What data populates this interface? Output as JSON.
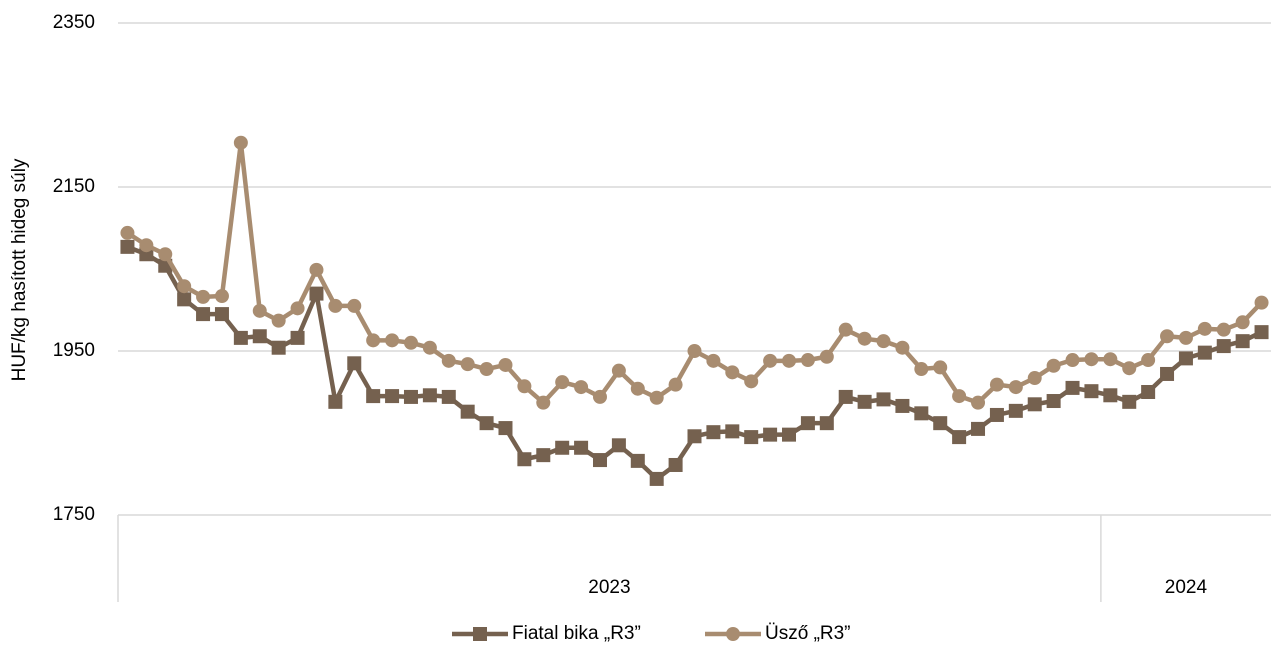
{
  "chart_data": {
    "type": "line",
    "y_label": "HUF/kg hasított hideg súly",
    "ylim": [
      1750,
      2350
    ],
    "yticks": [
      1750,
      1950,
      2150,
      2350
    ],
    "grid": true,
    "categories": [
      null,
      null,
      null,
      null,
      null,
      null,
      null,
      null,
      null,
      null,
      null,
      null,
      null,
      null,
      null,
      null,
      null,
      null,
      null,
      null,
      null,
      null,
      null,
      null,
      null,
      null,
      null,
      null,
      null,
      null,
      null,
      null,
      null,
      null,
      null,
      null,
      null,
      null,
      null,
      null,
      null,
      null,
      null,
      null,
      null,
      null,
      null,
      null,
      null,
      null,
      null,
      null,
      null,
      null,
      null,
      null,
      null,
      null,
      null,
      null,
      null
    ],
    "groups": [
      {
        "label": "2023",
        "size": 52
      },
      {
        "label": "2024",
        "size": 9
      }
    ],
    "legend": "bottom",
    "series": [
      {
        "name": "Fiatal bika „R3”",
        "color": "#75614f",
        "marker": "square",
        "values": [
          2077,
          2068,
          2054,
          2013,
          1995,
          1995,
          1966,
          1968,
          1954,
          1966,
          2020,
          1888,
          1935,
          1895,
          1895,
          1894,
          1896,
          1894,
          1876,
          1862,
          1856,
          1818,
          1823,
          1832,
          1832,
          1817,
          1835,
          1816,
          1794,
          1811,
          1846,
          1851,
          1852,
          1845,
          1848,
          1848,
          1862,
          1862,
          1894,
          1888,
          1891,
          1883,
          1874,
          1862,
          1845,
          1855,
          1872,
          1877,
          1885,
          1889,
          1905,
          1901,
          1896,
          1888,
          1900,
          1922,
          1941,
          1948,
          1956,
          1962,
          1973
        ]
      },
      {
        "name": "Üsző „R3”",
        "color": "#a88c70",
        "marker": "circle",
        "values": [
          2094,
          2079,
          2068,
          2029,
          2016,
          2017,
          2204,
          1999,
          1987,
          2002,
          2049,
          2005,
          2005,
          1963,
          1963,
          1960,
          1954,
          1938,
          1934,
          1928,
          1933,
          1907,
          1887,
          1912,
          1906,
          1894,
          1926,
          1904,
          1893,
          1909,
          1950,
          1938,
          1924,
          1913,
          1938,
          1938,
          1939,
          1943,
          1976,
          1965,
          1962,
          1954,
          1928,
          1930,
          1895,
          1887,
          1909,
          1906,
          1917,
          1932,
          1939,
          1940,
          1940,
          1929,
          1939,
          1968,
          1966,
          1977,
          1976,
          1985,
          2009
        ]
      }
    ]
  }
}
